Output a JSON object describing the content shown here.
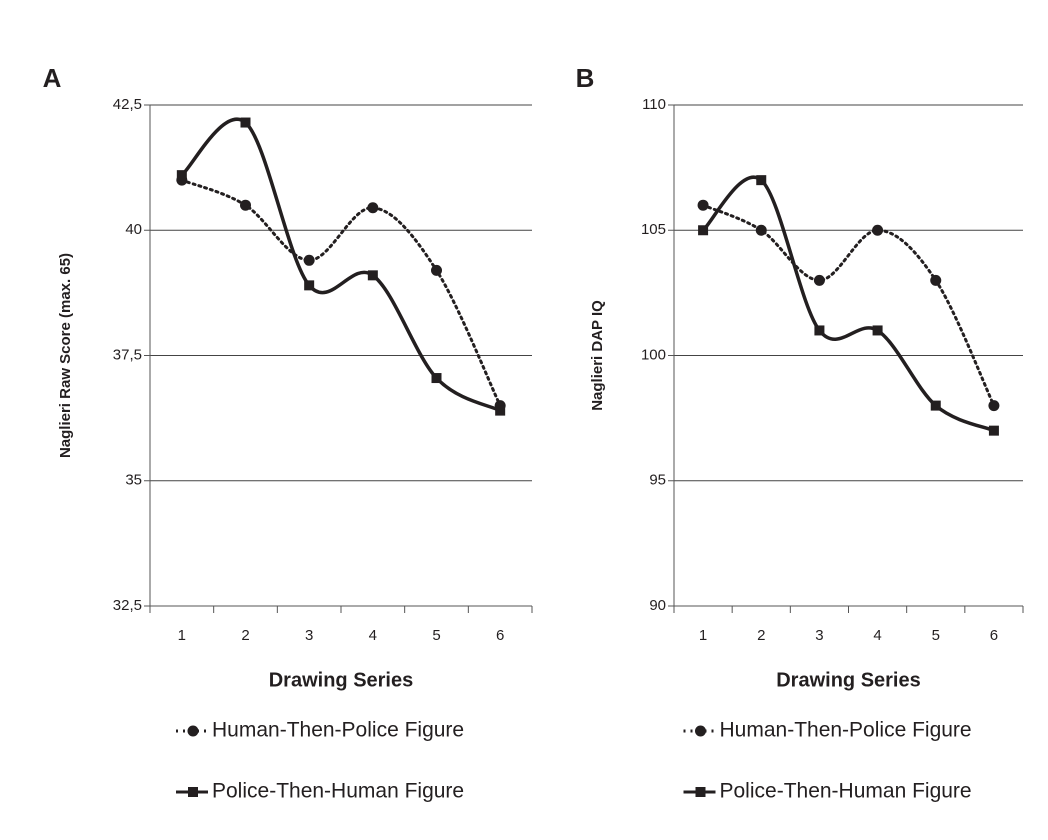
{
  "chart_data": [
    {
      "type": "line",
      "panel": "A",
      "x_label": "Drawing Series",
      "y_label": "Naglieri Raw Score (max. 65)",
      "categories": [
        "1",
        "2",
        "3",
        "4",
        "5",
        "6"
      ],
      "series": [
        {
          "name": "Human-Then-Police Figure",
          "color": "#231f20",
          "marker": "circle",
          "style": "dotted",
          "values": [
            41.0,
            40.5,
            39.4,
            40.45,
            39.2,
            36.5
          ]
        },
        {
          "name": "Police-Then-Human Figure",
          "color": "#231f20",
          "marker": "square",
          "style": "solid",
          "values": [
            41.1,
            42.15,
            38.9,
            39.1,
            37.05,
            36.4
          ]
        }
      ],
      "ylim": [
        32.5,
        42.5
      ],
      "yticks": [
        {
          "value": 32.5,
          "label": "32,5"
        },
        35,
        {
          "value": 37.5,
          "label": "37,5"
        },
        40,
        {
          "value": 42.5,
          "label": "42,5"
        }
      ],
      "grid": true
    },
    {
      "type": "line",
      "panel": "B",
      "x_label": "Drawing Series",
      "y_label": "Naglieri  DAP  IQ",
      "categories": [
        "1",
        "2",
        "3",
        "4",
        "5",
        "6"
      ],
      "series": [
        {
          "name": "Human-Then-Police Figure",
          "color": "#231f20",
          "marker": "circle",
          "style": "dotted",
          "values": [
            106,
            105,
            103,
            105,
            103,
            98
          ]
        },
        {
          "name": "Police-Then-Human Figure",
          "color": "#231f20",
          "marker": "square",
          "style": "solid",
          "values": [
            105,
            107,
            101,
            101,
            98,
            97
          ]
        }
      ],
      "ylim": [
        90,
        110
      ],
      "yticks": [
        90,
        95,
        100,
        105,
        110
      ],
      "grid": true
    }
  ]
}
